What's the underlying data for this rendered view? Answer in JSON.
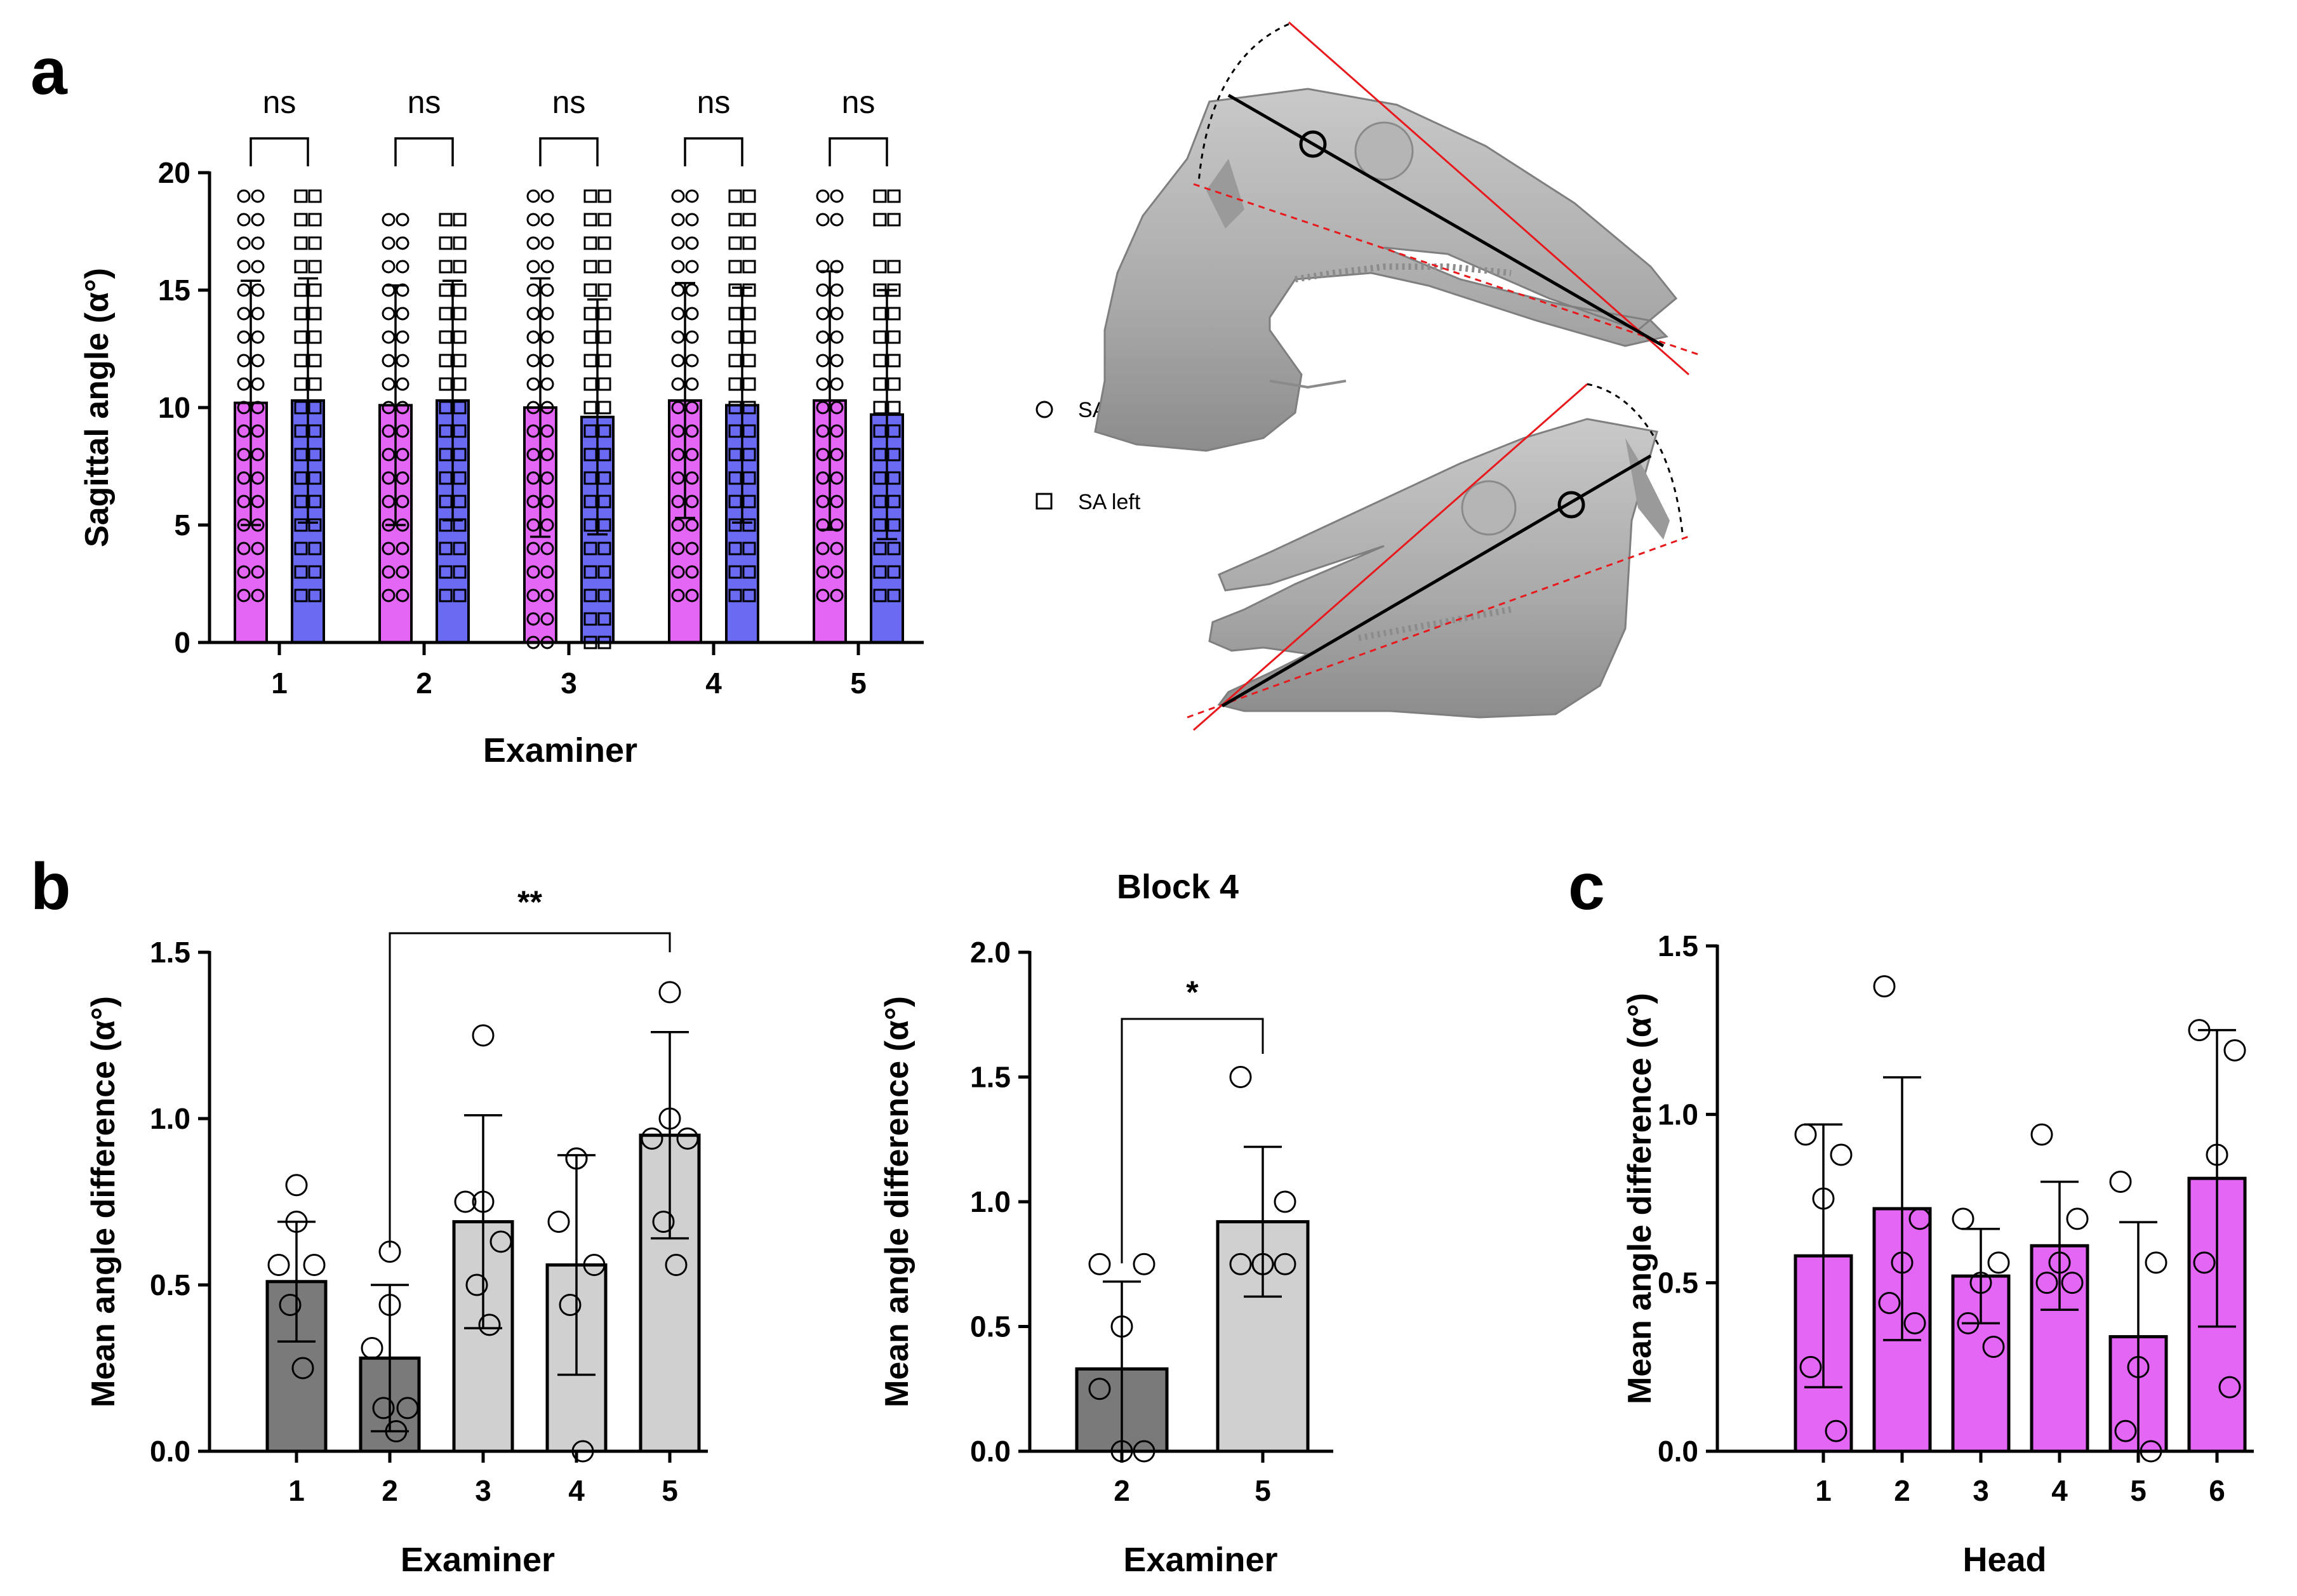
{
  "figure": {
    "panel_labels": {
      "a": "a",
      "b": "b",
      "c": "c"
    },
    "legend": {
      "circle_label": "SA right",
      "square_label": "SA left"
    },
    "colors": {
      "magenta": "#e366f5",
      "blue": "#6a6af2",
      "dark_grey": "#7a7a7a",
      "light_grey": "#d0d0d0",
      "red": "#e8191d"
    }
  },
  "chart_data": [
    {
      "id": "panel-a",
      "type": "bar",
      "ylabel": "Sagittal angle (α°)",
      "xlabel": "Examiner",
      "ylim": [
        0,
        20
      ],
      "yticks": [
        0,
        5,
        10,
        15,
        20
      ],
      "categories": [
        "1",
        "2",
        "3",
        "4",
        "5"
      ],
      "series": [
        {
          "name": "SA right",
          "marker": "circle",
          "color": "#e366f5",
          "values": [
            10.2,
            10.1,
            10.0,
            10.3,
            10.3
          ],
          "sd": [
            5.2,
            5.1,
            5.5,
            5.0,
            5.5
          ]
        },
        {
          "name": "SA left",
          "marker": "square",
          "color": "#6a6af2",
          "values": [
            10.3,
            10.3,
            9.6,
            10.1,
            9.7
          ],
          "sd": [
            5.2,
            5.1,
            5.0,
            5.0,
            5.3
          ]
        }
      ],
      "point_levels": [
        [
          2,
          3,
          4,
          5,
          6,
          7,
          8,
          9,
          10,
          11,
          12,
          13,
          14,
          15,
          16,
          17,
          18,
          19
        ],
        [
          2,
          3,
          4,
          5,
          6,
          7,
          8,
          9,
          10,
          11,
          12,
          13,
          14,
          15,
          16,
          17,
          18
        ],
        [
          0,
          1,
          2,
          3,
          4,
          5,
          6,
          7,
          8,
          9,
          10,
          11,
          12,
          13,
          14,
          15,
          16,
          17,
          18,
          19
        ],
        [
          2,
          3,
          4,
          5,
          6,
          7,
          8,
          9,
          10,
          11,
          12,
          13,
          14,
          15,
          16,
          17,
          18,
          19
        ],
        [
          2,
          3,
          4,
          5,
          6,
          7,
          8,
          9,
          10,
          11,
          12,
          13,
          14,
          15,
          16,
          18,
          19
        ]
      ],
      "comparisons": [
        "ns",
        "ns",
        "ns",
        "ns",
        "ns"
      ]
    },
    {
      "id": "panel-b1",
      "type": "bar",
      "ylabel": "Mean angle difference (α°)",
      "xlabel": "Examiner",
      "ylim": [
        0,
        1.5
      ],
      "yticks": [
        "0.0",
        "0.5",
        "1.0",
        "1.5"
      ],
      "categories": [
        "1",
        "2",
        "3",
        "4",
        "5"
      ],
      "values": [
        0.51,
        0.28,
        0.69,
        0.56,
        0.95
      ],
      "sd": [
        0.18,
        0.22,
        0.32,
        0.33,
        0.31
      ],
      "bar_colors": [
        "#7a7a7a",
        "#7a7a7a",
        "#d0d0d0",
        "#d0d0d0",
        "#d0d0d0"
      ],
      "points": [
        [
          0.8,
          0.69,
          0.56,
          0.56,
          0.44,
          0.25
        ],
        [
          0.6,
          0.44,
          0.31,
          0.13,
          0.13,
          0.06
        ],
        [
          1.25,
          0.75,
          0.75,
          0.63,
          0.5,
          0.38
        ],
        [
          0.88,
          0.88,
          0.69,
          0.56,
          0.44,
          0.0
        ],
        [
          1.38,
          1.0,
          0.94,
          0.94,
          0.69,
          0.56
        ]
      ],
      "comparison": {
        "from": "2",
        "to": "5",
        "label": "**"
      }
    },
    {
      "id": "panel-b2",
      "type": "bar",
      "title": "Block 4",
      "ylabel": "Mean angle difference (α°)",
      "xlabel": "Examiner",
      "ylim": [
        0,
        2.0
      ],
      "yticks": [
        "0.0",
        "0.5",
        "1.0",
        "1.5",
        "2.0"
      ],
      "categories": [
        "2",
        "5"
      ],
      "values": [
        0.33,
        0.92
      ],
      "sd": [
        0.35,
        0.3
      ],
      "bar_colors": [
        "#7a7a7a",
        "#d0d0d0"
      ],
      "points": [
        [
          0.75,
          0.75,
          0.5,
          0.25,
          0.0,
          0.0
        ],
        [
          1.5,
          1.0,
          0.75,
          0.75,
          0.75,
          0.75
        ]
      ],
      "comparison": {
        "from": "2",
        "to": "5",
        "label": "*"
      }
    },
    {
      "id": "panel-c",
      "type": "bar",
      "ylabel": "Mean angle difference (α°)",
      "xlabel": "Head",
      "ylim": [
        0,
        1.5
      ],
      "yticks": [
        "0.0",
        "0.5",
        "1.0",
        "1.5"
      ],
      "categories": [
        "1",
        "2",
        "3",
        "4",
        "5",
        "6"
      ],
      "values": [
        0.58,
        0.72,
        0.52,
        0.61,
        0.34,
        0.81
      ],
      "sd": [
        0.39,
        0.39,
        0.14,
        0.19,
        0.34,
        0.44
      ],
      "bar_colors": [
        "#e366f5",
        "#e366f5",
        "#e366f5",
        "#e366f5",
        "#e366f5",
        "#e366f5"
      ],
      "points": [
        [
          0.94,
          0.88,
          0.75,
          0.25,
          0.06
        ],
        [
          1.38,
          0.69,
          0.56,
          0.44,
          0.38
        ],
        [
          0.69,
          0.56,
          0.5,
          0.38,
          0.31
        ],
        [
          0.94,
          0.69,
          0.56,
          0.5,
          0.5
        ],
        [
          0.8,
          0.56,
          0.25,
          0.06,
          0.0
        ],
        [
          1.25,
          1.19,
          0.88,
          0.56,
          0.19
        ]
      ]
    }
  ]
}
